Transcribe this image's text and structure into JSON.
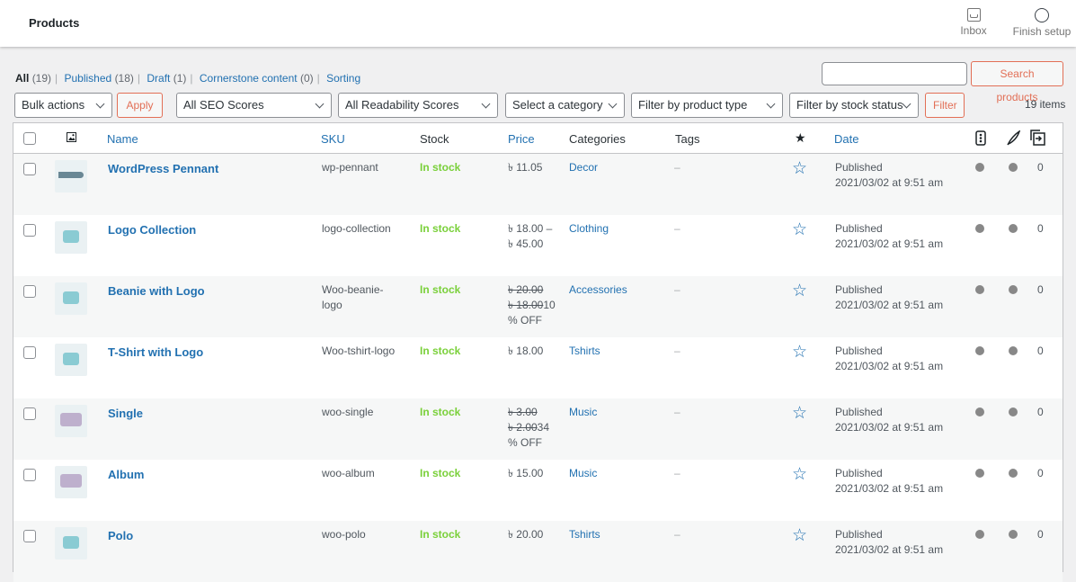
{
  "header": {
    "title": "Products",
    "inbox_label": "Inbox",
    "finish_label": "Finish setup"
  },
  "views": [
    {
      "label": "All",
      "count": "(19)"
    },
    {
      "label": "Published",
      "count": "(18)"
    },
    {
      "label": "Draft",
      "count": "(1)"
    },
    {
      "label": "Cornerstone content",
      "count": "(0)"
    },
    {
      "label": "Sorting",
      "count": ""
    }
  ],
  "search": {
    "value": "",
    "button": "Search products"
  },
  "filters": {
    "bulk_actions": "Bulk actions",
    "apply": "Apply",
    "seo": "All SEO Scores",
    "readability": "All Readability Scores",
    "category": "Select a category",
    "product_type": "Filter by product type",
    "stock_status": "Filter by stock status",
    "filter": "Filter",
    "items_count": "19 items"
  },
  "columns": {
    "name": "Name",
    "sku": "SKU",
    "stock": "Stock",
    "price": "Price",
    "categories": "Categories",
    "tags": "Tags",
    "date": "Date"
  },
  "icons": {
    "image_col": "image-icon",
    "featured": "star-icon",
    "seo": "seo-score-icon",
    "readability": "readability-icon",
    "links": "internal-links-icon"
  },
  "colors": {
    "link": "#2271b1",
    "in_stock": "#7ad03a",
    "accent": "#e26f56"
  },
  "rows": [
    {
      "name": "WordPress Pennant",
      "sku_line1": "wp-pennant",
      "sku_line2": "",
      "stock": "In stock",
      "price_line1": "৳ 11.05",
      "price_line2": "",
      "price_line3": "",
      "price_line2_tail": "",
      "on_sale": false,
      "category": "Decor",
      "tags": "–",
      "status": "Published",
      "date": "2021/03/02 at 9:51 am",
      "links": "0"
    },
    {
      "name": "Logo Collection",
      "sku_line1": "logo-collection",
      "sku_line2": "",
      "stock": "In stock",
      "price_line1": "৳ 18.00 –",
      "price_line2": "৳ 45.00",
      "price_line3": "",
      "price_line2_tail": "",
      "on_sale": false,
      "category": "Clothing",
      "tags": "–",
      "status": "Published",
      "date": "2021/03/02 at 9:51 am",
      "links": "0"
    },
    {
      "name": "Beanie with Logo",
      "sku_line1": "Woo-beanie-",
      "sku_line2": "logo",
      "stock": "In stock",
      "price_line1": "৳ 20.00",
      "price_line2": "৳ 18.00",
      "price_line2_tail": "10",
      "price_line3": "% OFF",
      "on_sale": true,
      "category": "Accessories",
      "tags": "–",
      "status": "Published",
      "date": "2021/03/02 at 9:51 am",
      "links": "0"
    },
    {
      "name": "T-Shirt with Logo",
      "sku_line1": "Woo-tshirt-logo",
      "sku_line2": "",
      "stock": "In stock",
      "price_line1": "৳ 18.00",
      "price_line2": "",
      "price_line3": "",
      "price_line2_tail": "",
      "on_sale": false,
      "category": "Tshirts",
      "tags": "–",
      "status": "Published",
      "date": "2021/03/02 at 9:51 am",
      "links": "0"
    },
    {
      "name": "Single",
      "sku_line1": "woo-single",
      "sku_line2": "",
      "stock": "In stock",
      "price_line1": "৳ 3.00",
      "price_line2": "৳ 2.00",
      "price_line2_tail": "34",
      "price_line3": "% OFF",
      "on_sale": true,
      "category": "Music",
      "tags": "–",
      "status": "Published",
      "date": "2021/03/02 at 9:51 am",
      "links": "0"
    },
    {
      "name": "Album",
      "sku_line1": "woo-album",
      "sku_line2": "",
      "stock": "In stock",
      "price_line1": "৳ 15.00",
      "price_line2": "",
      "price_line3": "",
      "price_line2_tail": "",
      "on_sale": false,
      "category": "Music",
      "tags": "–",
      "status": "Published",
      "date": "2021/03/02 at 9:51 am",
      "links": "0"
    },
    {
      "name": "Polo",
      "sku_line1": "woo-polo",
      "sku_line2": "",
      "stock": "In stock",
      "price_line1": "৳ 20.00",
      "price_line2": "",
      "price_line3": "",
      "price_line2_tail": "",
      "on_sale": false,
      "category": "Tshirts",
      "tags": "–",
      "status": "Published",
      "date": "2021/03/02 at 9:51 am",
      "links": "0"
    }
  ]
}
